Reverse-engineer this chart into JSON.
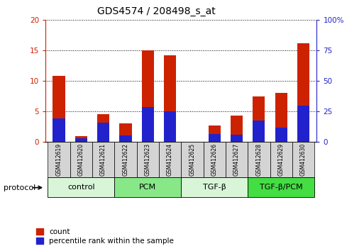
{
  "title": "GDS4574 / 208498_s_at",
  "samples": [
    "GSM412619",
    "GSM412620",
    "GSM412621",
    "GSM412622",
    "GSM412623",
    "GSM412624",
    "GSM412625",
    "GSM412626",
    "GSM412627",
    "GSM412628",
    "GSM412629",
    "GSM412630"
  ],
  "count_values": [
    10.8,
    0.9,
    4.5,
    3.0,
    15.0,
    14.2,
    0.0,
    2.7,
    4.3,
    7.5,
    8.0,
    16.2
  ],
  "percentile_values": [
    3.8,
    0.6,
    3.2,
    1.1,
    5.7,
    5.0,
    0.0,
    1.3,
    1.2,
    3.5,
    2.3,
    6.0
  ],
  "groups": [
    {
      "label": "control",
      "indices": [
        0,
        1,
        2
      ],
      "color": "#d8f5d8"
    },
    {
      "label": "PCM",
      "indices": [
        3,
        4,
        5
      ],
      "color": "#88e888"
    },
    {
      "label": "TGF-β",
      "indices": [
        6,
        7,
        8
      ],
      "color": "#d8f5d8"
    },
    {
      "label": "TGF-β/PCM",
      "indices": [
        9,
        10,
        11
      ],
      "color": "#44dd44"
    }
  ],
  "ylim_left": [
    0,
    20
  ],
  "ylim_right": [
    0,
    100
  ],
  "yticks_left": [
    0,
    5,
    10,
    15,
    20
  ],
  "yticks_right": [
    0,
    25,
    50,
    75,
    100
  ],
  "ytick_labels_right": [
    "0",
    "25",
    "50",
    "75",
    "100%"
  ],
  "bar_color_red": "#cc2200",
  "bar_color_blue": "#2222cc",
  "bar_width": 0.55,
  "legend_count": "count",
  "legend_percentile": "percentile rank within the sample",
  "protocol_label": "protocol",
  "sample_box_color": "#d4d4d4",
  "title_fontsize": 10,
  "tick_fontsize": 7.5,
  "sample_fontsize": 5.5,
  "group_fontsize": 8,
  "legend_fontsize": 7.5
}
